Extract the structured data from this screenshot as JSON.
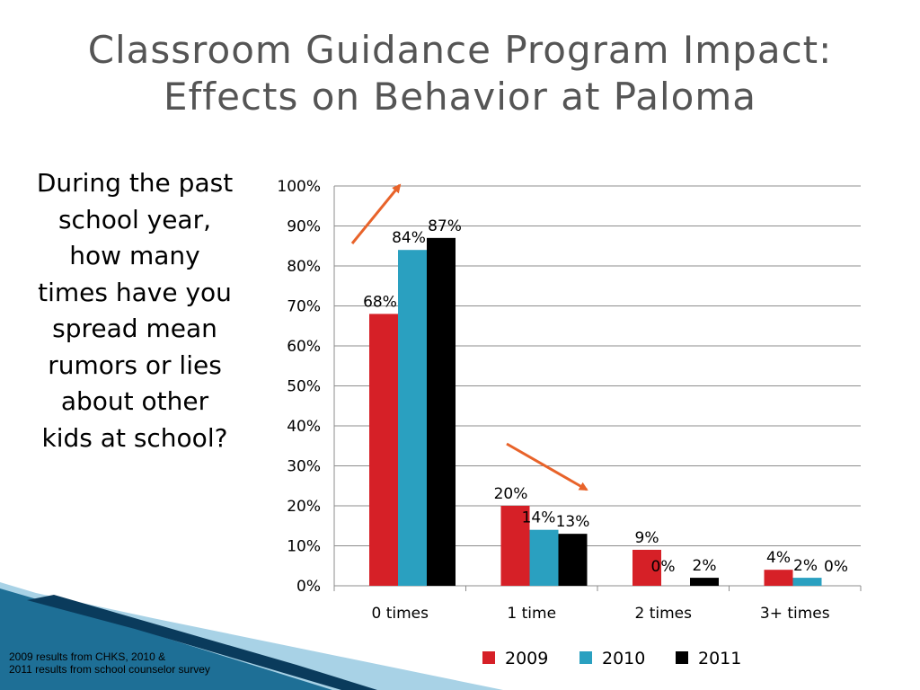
{
  "slide": {
    "title_line1": "Classroom Guidance Program Impact:",
    "title_line2": "Effects on Behavior at Paloma",
    "question": "During the past school year, how many times have you spread mean rumors or lies about other kids at school?",
    "source_line1": "2009 results from CHKS, 2010 &",
    "source_line2": "2011 results from school counselor survey"
  },
  "colors": {
    "title": "#555555",
    "series_2009": "#d62027",
    "series_2010": "#2aa0c0",
    "series_2011": "#000000",
    "arrow": "#e8632a",
    "gridline": "#8c8c8c",
    "deco_dark": "#0a3b5c",
    "deco_mid": "#1e6f96",
    "deco_light": "#a8d2e6"
  },
  "chart_data": {
    "type": "bar",
    "title": "",
    "xlabel": "",
    "ylabel": "",
    "ylim": [
      0,
      100
    ],
    "yticks": [
      "0%",
      "10%",
      "20%",
      "30%",
      "40%",
      "50%",
      "60%",
      "70%",
      "80%",
      "90%",
      "100%"
    ],
    "categories": [
      "0 times",
      "1 time",
      "2 times",
      "3+ times"
    ],
    "series": [
      {
        "name": "2009",
        "values": [
          68,
          20,
          9,
          4
        ],
        "labels": [
          "68%",
          "20%",
          "9%",
          "4%"
        ]
      },
      {
        "name": "2010",
        "values": [
          84,
          14,
          0,
          2
        ],
        "labels": [
          "84%",
          "14%",
          "0%",
          "2%"
        ]
      },
      {
        "name": "2011",
        "values": [
          87,
          13,
          2,
          0
        ],
        "labels": [
          "87%",
          "13%",
          "2%",
          "0%"
        ]
      }
    ],
    "legend_position": "bottom",
    "grid": true,
    "annotations": [
      {
        "type": "arrow",
        "direction": "up",
        "category": "0 times"
      },
      {
        "type": "arrow",
        "direction": "down",
        "category": "1 time"
      }
    ]
  }
}
